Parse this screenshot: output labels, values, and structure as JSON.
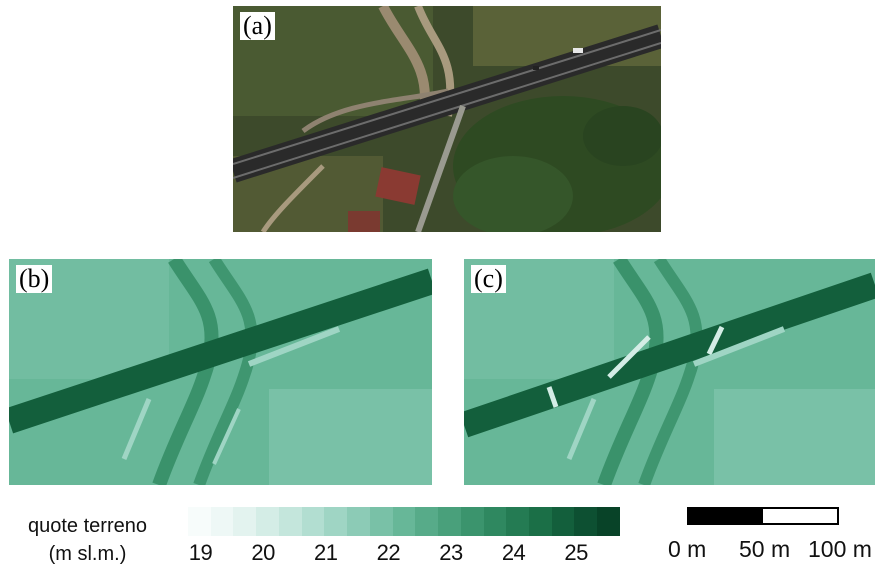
{
  "panels": {
    "a": {
      "label": "(a)",
      "content": "aerial photograph"
    },
    "b": {
      "label": "(b)",
      "content": "terrain elevation model"
    },
    "c": {
      "label": "(c)",
      "content": "terrain elevation model"
    }
  },
  "legend": {
    "title_line1": "quote terreno",
    "title_line2": "(m sl.m.)",
    "ticks": [
      "19",
      "20",
      "21",
      "22",
      "23",
      "24",
      "25"
    ],
    "colors": [
      "#f7fcfb",
      "#eef8f6",
      "#e3f3ef",
      "#d4ede6",
      "#c4e6dc",
      "#b2ded1",
      "#9fd5c4",
      "#8ccbb6",
      "#79c1a7",
      "#67b798",
      "#57ab89",
      "#49a07b",
      "#3b946d",
      "#2f8860",
      "#247b53",
      "#1b6f47",
      "#135f3c",
      "#0d5032",
      "#084328"
    ],
    "min_value": 19,
    "max_value": 25.9
  },
  "scalebar": {
    "labels": [
      "0 m",
      "50 m",
      "100 m"
    ]
  }
}
